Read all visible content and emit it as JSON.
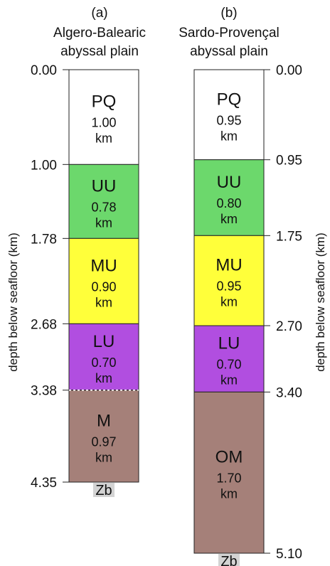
{
  "figure": {
    "ylabel": "depth below seafloor (km)"
  },
  "columns": [
    {
      "panel_label": "(a)",
      "title_lines": [
        "Algero-Balearic",
        "abyssal plain"
      ],
      "units": [
        {
          "name": "PQ",
          "thickness": "1.00",
          "unit": "km",
          "top": 0.0,
          "bottom": 1.0,
          "color": "#ffffff"
        },
        {
          "name": "UU",
          "thickness": "0.78",
          "unit": "km",
          "top": 1.0,
          "bottom": 1.78,
          "color": "#6cd86c"
        },
        {
          "name": "MU",
          "thickness": "0.90",
          "unit": "km",
          "top": 1.78,
          "bottom": 2.68,
          "color": "#ffff3a"
        },
        {
          "name": "LU",
          "thickness": "0.70",
          "unit": "km",
          "top": 2.68,
          "bottom": 3.38,
          "color": "#b14ee0"
        },
        {
          "name": "M",
          "thickness": "0.97",
          "unit": "km",
          "top": 3.38,
          "bottom": 4.35,
          "color": "#a58079"
        }
      ],
      "depth_labels": [
        "0.00",
        "1.00",
        "1.78",
        "2.68",
        "3.38",
        "4.35"
      ],
      "base_label": "Zb",
      "base_label_bg": "#d3d3d3",
      "dashed_boundary_index": 4
    },
    {
      "panel_label": "(b)",
      "title_lines": [
        "Sardo-Provençal",
        "abyssal plain"
      ],
      "units": [
        {
          "name": "PQ",
          "thickness": "0.95",
          "unit": "km",
          "top": 0.0,
          "bottom": 0.95,
          "color": "#ffffff"
        },
        {
          "name": "UU",
          "thickness": "0.80",
          "unit": "km",
          "top": 0.95,
          "bottom": 1.75,
          "color": "#6cd86c"
        },
        {
          "name": "MU",
          "thickness": "0.95",
          "unit": "km",
          "top": 1.75,
          "bottom": 2.7,
          "color": "#ffff3a"
        },
        {
          "name": "LU",
          "thickness": "0.70",
          "unit": "km",
          "top": 2.7,
          "bottom": 3.4,
          "color": "#b14ee0"
        },
        {
          "name": "OM",
          "thickness": "1.70",
          "unit": "km",
          "top": 3.4,
          "bottom": 5.1,
          "color": "#a58079"
        }
      ],
      "depth_labels": [
        "0.00",
        "0.95",
        "1.75",
        "2.70",
        "3.40",
        "5.10"
      ],
      "base_label": "Zb",
      "base_label_bg": "#d3d3d3",
      "dashed_boundary_index": null
    }
  ]
}
